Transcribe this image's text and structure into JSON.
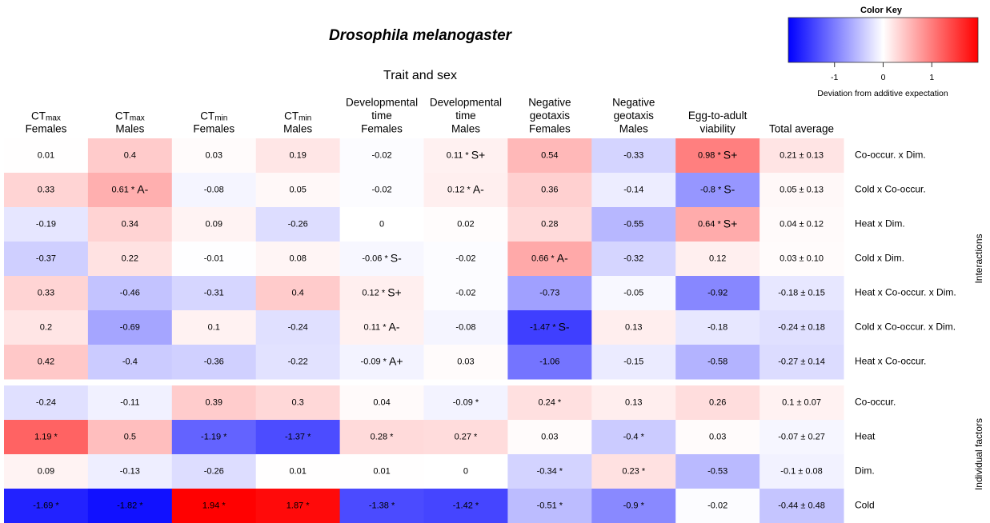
{
  "chart_data": {
    "type": "heatmap",
    "title": "Drosophila melanogaster",
    "x_label": "Trait and sex",
    "columns": [
      {
        "prefix": "CT",
        "sub": "max",
        "lines": [
          "Females"
        ]
      },
      {
        "prefix": "CT",
        "sub": "max",
        "lines": [
          "Males"
        ]
      },
      {
        "prefix": "CT",
        "sub": "min",
        "lines": [
          "Females"
        ]
      },
      {
        "prefix": "CT",
        "sub": "min",
        "lines": [
          "Males"
        ]
      },
      {
        "lines": [
          "Developmental",
          "time",
          "Females"
        ]
      },
      {
        "lines": [
          "Developmental",
          "time",
          "Males"
        ]
      },
      {
        "lines": [
          "Negative",
          "geotaxis",
          "Females"
        ]
      },
      {
        "lines": [
          "Negative",
          "geotaxis",
          "Males"
        ]
      },
      {
        "lines": [
          "Egg-to-adult",
          "viability"
        ]
      },
      {
        "lines": [
          "Total average"
        ]
      }
    ],
    "rows": [
      "Co-occur. x Dim.",
      "Cold x Co-occur.",
      "Heat x Dim.",
      "Cold x Dim.",
      "Heat x Co-occur. x Dim.",
      "Cold x Co-occur. x Dim.",
      "Heat x Co-occur.",
      "Co-occur.",
      "Heat",
      "Dim.",
      "Cold"
    ],
    "groups": [
      {
        "name": "Interactions",
        "rows": [
          0,
          6
        ]
      },
      {
        "name": "Individual factors",
        "rows": [
          7,
          10
        ]
      }
    ],
    "values": [
      [
        0.01,
        0.4,
        0.03,
        0.19,
        -0.02,
        0.11,
        0.54,
        -0.33,
        0.98,
        0.21
      ],
      [
        0.33,
        0.61,
        -0.08,
        0.05,
        -0.02,
        0.12,
        0.36,
        -0.14,
        -0.8,
        0.05
      ],
      [
        -0.19,
        0.34,
        0.09,
        -0.26,
        0,
        0.02,
        0.28,
        -0.55,
        0.64,
        0.04
      ],
      [
        -0.37,
        0.22,
        -0.01,
        0.08,
        -0.06,
        -0.02,
        0.66,
        -0.32,
        0.12,
        0.03
      ],
      [
        0.33,
        -0.46,
        -0.31,
        0.4,
        0.12,
        -0.02,
        -0.73,
        -0.05,
        -0.92,
        -0.18
      ],
      [
        0.2,
        -0.69,
        0.1,
        -0.24,
        0.11,
        -0.08,
        -1.47,
        0.13,
        -0.18,
        -0.24
      ],
      [
        0.42,
        -0.4,
        -0.36,
        -0.22,
        -0.09,
        0.03,
        -1.06,
        -0.15,
        -0.58,
        -0.27
      ],
      [
        -0.24,
        -0.11,
        0.39,
        0.3,
        0.04,
        -0.09,
        0.24,
        0.13,
        0.26,
        0.1
      ],
      [
        1.19,
        0.5,
        -1.19,
        -1.37,
        0.28,
        0.27,
        0.03,
        -0.4,
        0.03,
        -0.07
      ],
      [
        0.09,
        -0.13,
        -0.26,
        0.01,
        0.01,
        0,
        -0.34,
        0.23,
        -0.53,
        -0.1
      ],
      [
        -1.69,
        -1.82,
        1.94,
        1.87,
        -1.38,
        -1.42,
        -0.51,
        -0.9,
        -0.02,
        -0.44
      ]
    ],
    "value_labels": [
      [
        null,
        null,
        null,
        null,
        null,
        "0.11 * S+",
        null,
        null,
        "0.98 * S+",
        "0.21 ± 0.13"
      ],
      [
        null,
        "0.61 * A-",
        null,
        null,
        null,
        "0.12 * A-",
        null,
        null,
        "-0.8 * S-",
        "0.05 ± 0.13"
      ],
      [
        null,
        null,
        null,
        null,
        null,
        null,
        null,
        null,
        "0.64 * S+",
        "0.04 ± 0.12"
      ],
      [
        null,
        null,
        null,
        null,
        "-0.06 * S-",
        null,
        "0.66 * A-",
        null,
        null,
        "0.03 ± 0.10"
      ],
      [
        null,
        null,
        null,
        null,
        "0.12 * S+",
        null,
        null,
        null,
        null,
        "-0.18 ± 0.15"
      ],
      [
        null,
        null,
        null,
        null,
        "0.11 * A-",
        null,
        "-1.47 * S-",
        null,
        null,
        "-0.24 ± 0.18"
      ],
      [
        null,
        null,
        null,
        null,
        "-0.09 * A+",
        null,
        null,
        null,
        null,
        "-0.27 ± 0.14"
      ],
      [
        null,
        null,
        null,
        null,
        null,
        "-0.09 *",
        "0.24 *",
        null,
        null,
        "0.1 ± 0.07"
      ],
      [
        "1.19 *",
        null,
        "-1.19 *",
        "-1.37 *",
        "0.28 *",
        "0.27 *",
        null,
        "-0.4 *",
        null,
        "-0.07 ± 0.27"
      ],
      [
        null,
        null,
        null,
        null,
        null,
        null,
        "-0.34 *",
        "0.23 *",
        null,
        "-0.1 ± 0.08"
      ],
      [
        "-1.69 *",
        "-1.82 *",
        "1.94 *",
        "1.87 *",
        "-1.38 *",
        "-1.42 *",
        "-0.51 *",
        "-0.9 *",
        null,
        "-0.44 ± 0.48"
      ]
    ],
    "colorkey": {
      "title": "Color Key",
      "label": "Deviation from additive expectation",
      "zlim": [
        -1.95,
        1.95
      ],
      "ticks": [
        -1,
        0,
        1
      ],
      "low_color": "#0000ff",
      "mid_color": "#ffffff",
      "high_color": "#ff0000"
    }
  }
}
